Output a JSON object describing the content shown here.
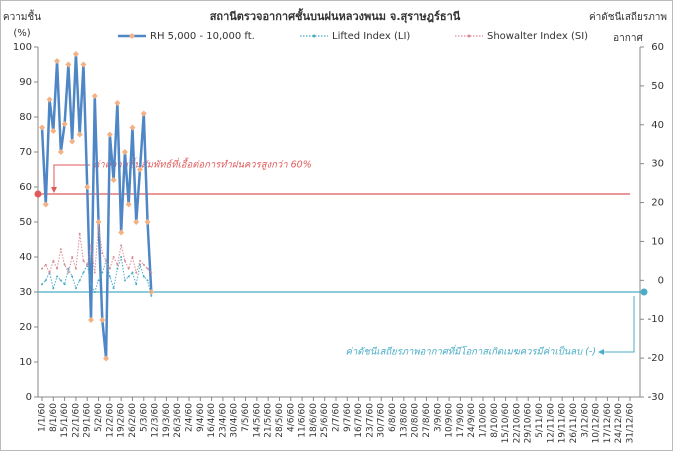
{
  "chart_data": {
    "type": "line",
    "title": "สถานีตรวจอากาศชั้นบนฝนหลวงพนม จ.สุราษฎร์ธานี",
    "y_label": [
      "ความชื้น",
      "(%)"
    ],
    "y2_label": [
      "ค่าดัชนีเสถียรภาพ",
      "อากาศ"
    ],
    "categories": [
      "1/1/60",
      null,
      null,
      "8/1/60",
      null,
      null,
      "15/1/60",
      null,
      null,
      "22/1/60",
      null,
      null,
      "29/1/60",
      null,
      null,
      "5/2/60",
      null,
      null,
      "12/2/60",
      null,
      null,
      "19/2/60",
      null,
      null,
      "26/2/60",
      null,
      null,
      "5/3/60",
      null,
      null,
      "12/3/60",
      null,
      null,
      "19/3/60",
      null,
      null,
      "26/3/60",
      null,
      null,
      "2/4/60",
      null,
      null,
      "9/4/60",
      null,
      null,
      "16/4/60",
      null,
      null,
      "23/4/60",
      null,
      null,
      "30/4/60",
      null,
      null,
      "7/5/60",
      null,
      null,
      "14/5/60",
      null,
      null,
      "21/5/60",
      null,
      null,
      "28/5/60",
      null,
      null,
      "4/6/60",
      null,
      null,
      "11/6/60",
      null,
      null,
      "18/6/60",
      null,
      null,
      "25/6/60",
      null,
      null,
      "2/7/60",
      null,
      null,
      "9/7/60",
      null,
      null,
      "16/7/60",
      null,
      null,
      "23/7/60",
      null,
      null,
      "30/7/60",
      null,
      null,
      "6/8/60",
      null,
      null,
      "13/8/60",
      null,
      null,
      "20/8/60",
      null,
      null,
      "27/8/60",
      null,
      null,
      "3/9/60",
      null,
      null,
      "10/9/60",
      null,
      null,
      "17/9/60",
      null,
      null,
      "24/9/60",
      null,
      null,
      "1/10/60",
      null,
      null,
      "8/10/60",
      null,
      null,
      "15/10/60",
      null,
      null,
      "22/10/60",
      null,
      null,
      "29/10/60",
      null,
      null,
      "5/11/60",
      null,
      null,
      "12/11/60",
      null,
      null,
      "19/11/60",
      null,
      null,
      "26/11/60",
      null,
      null,
      "3/12/60",
      null,
      null,
      "10/12/60",
      null,
      null,
      "17/12/60",
      null,
      null,
      "24/12/60",
      null,
      null,
      "31/12/60"
    ],
    "series": [
      {
        "name": "RH 5,000 - 10,000 ft.",
        "color": "#4f86c6",
        "marker_color": "#f4b183",
        "style": "solid",
        "values": [
          77,
          55,
          85,
          76,
          96,
          70,
          78,
          95,
          73,
          98,
          75,
          95,
          60,
          22,
          86,
          50,
          22,
          11,
          75,
          62,
          84,
          47,
          70,
          55,
          77,
          50,
          65,
          81,
          50,
          30,
          null,
          null,
          null,
          null,
          null,
          null,
          null,
          null,
          null,
          null,
          null,
          null,
          null,
          null,
          null,
          null,
          null,
          null,
          null,
          null,
          null,
          null,
          null,
          null,
          null,
          null,
          null,
          null,
          null,
          null,
          null,
          null,
          null,
          null,
          null,
          null,
          null,
          null,
          null,
          null,
          null,
          null,
          null,
          null,
          null,
          null,
          null,
          null,
          null,
          null,
          null,
          null,
          null,
          null,
          null,
          null,
          null,
          null,
          null,
          null,
          null,
          null,
          null,
          null,
          null,
          null,
          null,
          null,
          null,
          null,
          null,
          null,
          null,
          null,
          null,
          null,
          null,
          null,
          null,
          null,
          null,
          null,
          null,
          null,
          null,
          null,
          null,
          null,
          null,
          null,
          null,
          null,
          null,
          null,
          null,
          null,
          null,
          null,
          null,
          null,
          null,
          null,
          null,
          null,
          null,
          null,
          null,
          null,
          null,
          null,
          null,
          null,
          null,
          null,
          null,
          null,
          null,
          null,
          null,
          null,
          null,
          null,
          null,
          null,
          null,
          null,
          null
        ]
      },
      {
        "name": "Lifted Index (LI)",
        "color": "#4bacc6",
        "style": "dotted",
        "axis": "y2",
        "values": [
          -1,
          0,
          2,
          -2,
          1,
          0,
          -1,
          3,
          1,
          -2,
          0,
          2,
          4,
          -1,
          -3,
          0,
          2,
          5,
          1,
          -2,
          3,
          6,
          0,
          1,
          2,
          -1,
          4,
          1,
          0,
          -4,
          null,
          null,
          null,
          null,
          null,
          null,
          null,
          null,
          null,
          null,
          null,
          null,
          null,
          null,
          null,
          null,
          null,
          null,
          null,
          null,
          null,
          null,
          null,
          null,
          null,
          null,
          null,
          null,
          null,
          null,
          null,
          null,
          null,
          null,
          null,
          null,
          null,
          null,
          null,
          null,
          null,
          null,
          null,
          null,
          null,
          null,
          null,
          null,
          null,
          null,
          null,
          null,
          null,
          null,
          null,
          null,
          null,
          null,
          null,
          null,
          null,
          null,
          null,
          null,
          null,
          null,
          null,
          null,
          null,
          null,
          null,
          null,
          null,
          null,
          null,
          null,
          null,
          null,
          null,
          null,
          null,
          null,
          null,
          null,
          null,
          null,
          null,
          null,
          null,
          null,
          null,
          null,
          null,
          null,
          null,
          null,
          null,
          null,
          null,
          null,
          null,
          null,
          null,
          null,
          null,
          null,
          null,
          null,
          null,
          null,
          null,
          null,
          null,
          null,
          null,
          null,
          null,
          null,
          null,
          null,
          null,
          null,
          null,
          null,
          null,
          null,
          null
        ]
      },
      {
        "name": "Showalter Index (SI)",
        "color": "#d98c94",
        "style": "dotted",
        "axis": "y2",
        "values": [
          3,
          4,
          2,
          5,
          3,
          8,
          4,
          2,
          6,
          3,
          12,
          5,
          4,
          9,
          2,
          14,
          7,
          5,
          3,
          6,
          4,
          9,
          5,
          3,
          6,
          2,
          5,
          4,
          3,
          2,
          null,
          null,
          null,
          null,
          null,
          null,
          null,
          null,
          null,
          null,
          null,
          null,
          null,
          null,
          null,
          null,
          null,
          null,
          null,
          null,
          null,
          null,
          null,
          null,
          null,
          null,
          null,
          null,
          null,
          null,
          null,
          null,
          null,
          null,
          null,
          null,
          null,
          null,
          null,
          null,
          null,
          null,
          null,
          null,
          null,
          null,
          null,
          null,
          null,
          null,
          null,
          null,
          null,
          null,
          null,
          null,
          null,
          null,
          null,
          null,
          null,
          null,
          null,
          null,
          null,
          null,
          null,
          null,
          null,
          null,
          null,
          null,
          null,
          null,
          null,
          null,
          null,
          null,
          null,
          null,
          null,
          null,
          null,
          null,
          null,
          null,
          null,
          null,
          null,
          null,
          null,
          null,
          null,
          null,
          null,
          null,
          null,
          null,
          null,
          null,
          null,
          null,
          null,
          null,
          null,
          null,
          null,
          null,
          null,
          null,
          null,
          null,
          null,
          null,
          null,
          null,
          null,
          null,
          null,
          null,
          null,
          null,
          null,
          null,
          null,
          null,
          null
        ]
      }
    ],
    "ylim": [
      0,
      100
    ],
    "yticks": [
      0,
      10,
      20,
      30,
      40,
      50,
      60,
      70,
      80,
      90,
      100
    ],
    "y2lim": [
      -30,
      60
    ],
    "y2ticks": [
      -30,
      -20,
      -10,
      0,
      10,
      20,
      30,
      40,
      50,
      60
    ],
    "reference_lines": [
      {
        "value": 58,
        "axis": "y",
        "color": "#e05a5a",
        "label": "ค่าความชื้นสัมพัทธ์ที่เอื้อต่อการทำฝนควรสูงกว่า 60%"
      },
      {
        "value": -3,
        "axis": "y2",
        "color": "#4bacc6",
        "label": "ค่าดัชนีเสถียรภาพอากาศที่มีโอกาสเกิดเมฆควรมีค่าเป็นลบ (-)"
      }
    ]
  }
}
